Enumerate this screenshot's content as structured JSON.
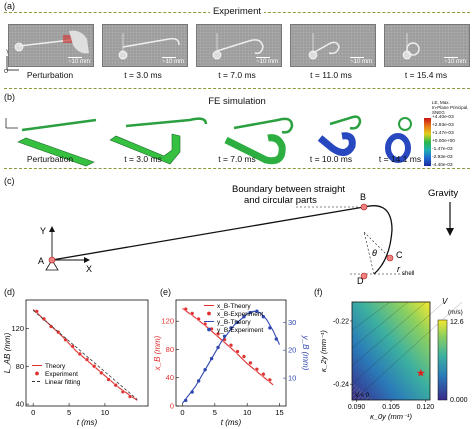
{
  "panels": {
    "a": {
      "letter": "(a)",
      "heading": "Experiment",
      "captions": [
        "Perturbation",
        "t = 3.0 ms",
        "t = 7.0 ms",
        "t = 11.0 ms",
        "t = 15.4 ms"
      ],
      "scalebar": "~10 mm",
      "axes": {
        "y": "Y",
        "x": "X",
        "o": "O"
      }
    },
    "b": {
      "letter": "(b)",
      "heading": "FE simulation",
      "captions": [
        "Perturbation",
        "t = 3.0 ms",
        "t = 7.0 ms",
        "t = 10.0 ms",
        "t = 14.1 ms"
      ],
      "legend_title": [
        "LE, Max.",
        "In-Plane Principal, SNEG"
      ],
      "legend_values": [
        "+4.40e-03",
        "+2.93e-03",
        "+1.47e-03",
        "+0.00e+00",
        "-1.47e-03",
        "-2.93e-03",
        "-4.40e-03"
      ],
      "legend_colors": [
        "#c81414",
        "#e87818",
        "#e0d020",
        "#2cb84c",
        "#20b0b0",
        "#2068d0",
        "#1c2c98"
      ]
    },
    "c": {
      "letter": "(c)",
      "boundary_text": [
        "Boundary between straight",
        "and circular parts"
      ],
      "points": {
        "A": "A",
        "B": "B",
        "C": "C",
        "D": "D"
      },
      "theta": "θ",
      "r_shell": "r",
      "r_shell_sub": "shell",
      "gravity": "Gravity",
      "axis_y": "Y",
      "axis_x": "X"
    },
    "d": {
      "letter": "(d)",
      "legend": [
        "Theory",
        "Experiment",
        "Linear fitting"
      ]
    },
    "e": {
      "letter": "(e)",
      "legend": [
        "x_B-Theory",
        "x_B-Experiment",
        "y_B-Theory",
        "y_B-Experiment"
      ]
    },
    "f": {
      "letter": "(f)",
      "colorbar_label": "V",
      "colorbar_unit": "(m/s)",
      "colorbar_ticks": [
        "12.6",
        "0.000"
      ],
      "region_label": "V < 0"
    }
  },
  "chart_data": [
    {
      "type": "line",
      "panel": "d",
      "xlabel": "t (ms)",
      "ylabel": "L_AB (mm)",
      "xlim": [
        -1,
        16
      ],
      "ylim": [
        38,
        150
      ],
      "xticks": [
        0,
        5,
        10
      ],
      "yticks": [
        40,
        80,
        120
      ],
      "series": [
        {
          "name": "Theory",
          "color": "#e03030",
          "style": "solid",
          "x": [
            0,
            2,
            4,
            6,
            8,
            10,
            12,
            14.5
          ],
          "y": [
            140,
            126,
            112,
            96,
            83,
            70,
            57,
            44
          ]
        },
        {
          "name": "Experiment",
          "color": "#e03030",
          "style": "marker",
          "x": [
            0.5,
            1.5,
            2.5,
            3.5,
            4.5,
            5.5,
            6.5,
            7.5,
            8.5,
            9.5,
            10.5,
            11.5,
            12.5,
            13.5
          ],
          "y": [
            138,
            130,
            122,
            116,
            108,
            101,
            93,
            87,
            80,
            73,
            66,
            60,
            53,
            48
          ]
        },
        {
          "name": "Linear fitting",
          "color": "#333333",
          "style": "dashed",
          "x": [
            0,
            14.5
          ],
          "y": [
            139,
            45
          ]
        }
      ]
    },
    {
      "type": "line",
      "panel": "e",
      "xlabel": "t (ms)",
      "ylabel": "x_B (mm)",
      "ylabel_right": "y_B (mm)",
      "xlim": [
        -1,
        16
      ],
      "ylim": [
        0,
        150
      ],
      "ylim_right": [
        0,
        38
      ],
      "xticks": [
        0,
        5,
        10,
        15
      ],
      "yticks": [
        0,
        40,
        80,
        120
      ],
      "yticks_right": [
        10,
        20,
        30
      ],
      "series": [
        {
          "name": "x_B-Theory",
          "color": "#e03030",
          "style": "solid",
          "axis": "left",
          "x": [
            0,
            2,
            4,
            6,
            8,
            10,
            12,
            14
          ],
          "y": [
            138,
            125,
            110,
            94,
            78,
            60,
            45,
            30
          ]
        },
        {
          "name": "x_B-Experiment",
          "color": "#e03030",
          "style": "marker",
          "axis": "left",
          "x": [
            0.5,
            1.5,
            2.5,
            3.5,
            4.5,
            5.5,
            6.5,
            7.5,
            8.5,
            9.5,
            10.5,
            11.5,
            12.5,
            13.5
          ],
          "y": [
            137,
            131,
            123,
            116,
            109,
            102,
            94,
            86,
            77,
            70,
            61,
            52,
            45,
            37
          ]
        },
        {
          "name": "y_B-Theory",
          "color": "#3048b0",
          "style": "solid",
          "axis": "right",
          "x": [
            0,
            2,
            4,
            6,
            8,
            10,
            11,
            12,
            13,
            14,
            15
          ],
          "y": [
            1,
            7,
            15,
            23,
            29,
            33,
            34,
            33.5,
            31,
            27,
            22
          ]
        },
        {
          "name": "y_B-Experiment",
          "color": "#3048b0",
          "style": "marker",
          "axis": "right",
          "x": [
            0.5,
            1.5,
            2.5,
            3.5,
            4.5,
            5.5,
            6.5,
            7.5,
            8.5,
            9.5,
            10.5,
            11.5,
            12.5,
            13.5,
            14.5
          ],
          "y": [
            2,
            5,
            9,
            13,
            17,
            21,
            25,
            28,
            30,
            32,
            33.5,
            34,
            32,
            28,
            24
          ]
        }
      ]
    },
    {
      "type": "heatmap",
      "panel": "f",
      "xlabel": "κ_0y (mm⁻¹)",
      "ylabel": "κ_2y (mm⁻¹)",
      "xlim": [
        0.088,
        0.122
      ],
      "ylim": [
        -0.245,
        -0.214
      ],
      "xticks": [
        0.09,
        0.105,
        0.12
      ],
      "yticks": [
        -0.22,
        -0.24
      ],
      "zlim": [
        0,
        12.6
      ],
      "marker": {
        "x": 0.118,
        "y": -0.2365,
        "shape": "star",
        "color": "#e02020"
      }
    }
  ]
}
